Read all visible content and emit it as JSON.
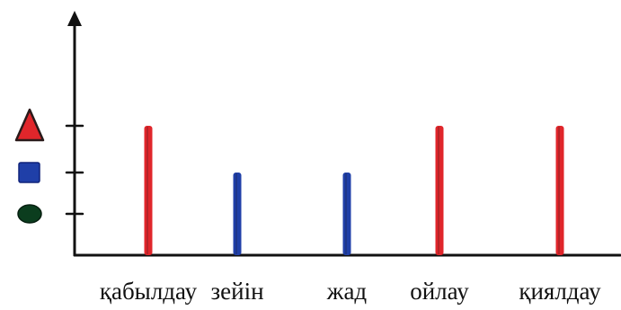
{
  "chart_data": {
    "type": "bar",
    "categories": [
      "қабылдау",
      "зейін",
      "жад",
      "ойлау",
      "қиялдау"
    ],
    "series": [
      {
        "values": [
          3,
          2,
          2,
          3,
          3
        ],
        "markers": [
          "triangle",
          "square",
          "square",
          "triangle",
          "triangle"
        ]
      }
    ],
    "ylim": [
      0,
      3.4
    ],
    "y_levels": [
      {
        "value": 1,
        "marker": "circle",
        "color": "#0b3d1e"
      },
      {
        "value": 2,
        "marker": "square",
        "color": "#1f3fa8"
      },
      {
        "value": 3,
        "marker": "triangle",
        "color": "#e0262b"
      }
    ],
    "colors": {
      "triangle": "#e0262b",
      "square": "#1f3fa8",
      "circle": "#0b3d1e",
      "axis": "#111111"
    },
    "grid": false,
    "legend": "none"
  }
}
